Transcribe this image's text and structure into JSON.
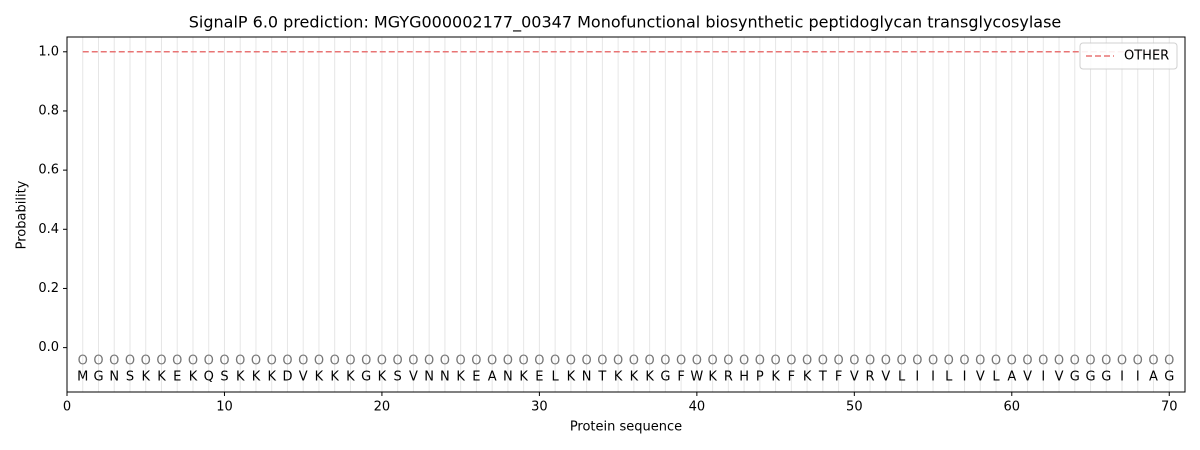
{
  "chart_data": {
    "type": "line",
    "title": "SignalP 6.0 prediction: MGYG000002177_00347 Monofunctional biosynthetic peptidoglycan transglycosylase",
    "xlabel": "Protein sequence",
    "ylabel": "Probability",
    "x": [
      1,
      2,
      3,
      4,
      5,
      6,
      7,
      8,
      9,
      10,
      11,
      12,
      13,
      14,
      15,
      16,
      17,
      18,
      19,
      20,
      21,
      22,
      23,
      24,
      25,
      26,
      27,
      28,
      29,
      30,
      31,
      32,
      33,
      34,
      35,
      36,
      37,
      38,
      39,
      40,
      41,
      42,
      43,
      44,
      45,
      46,
      47,
      48,
      49,
      50,
      51,
      52,
      53,
      54,
      55,
      56,
      57,
      58,
      59,
      60,
      61,
      62,
      63,
      64,
      65,
      66,
      67,
      68,
      69,
      70
    ],
    "residues": [
      "M",
      "G",
      "N",
      "S",
      "K",
      "K",
      "E",
      "K",
      "Q",
      "S",
      "K",
      "K",
      "K",
      "D",
      "V",
      "K",
      "K",
      "K",
      "G",
      "K",
      "S",
      "V",
      "N",
      "N",
      "K",
      "E",
      "A",
      "N",
      "K",
      "E",
      "L",
      "K",
      "N",
      "T",
      "K",
      "K",
      "K",
      "G",
      "F",
      "W",
      "K",
      "R",
      "H",
      "P",
      "K",
      "F",
      "K",
      "T",
      "F",
      "V",
      "R",
      "V",
      "L",
      "I",
      "I",
      "L",
      "I",
      "V",
      "L",
      "A",
      "V",
      "I",
      "V",
      "G",
      "G",
      "G",
      "I",
      "I",
      "A",
      "G"
    ],
    "labels": [
      "O",
      "O",
      "O",
      "O",
      "O",
      "O",
      "O",
      "O",
      "O",
      "O",
      "O",
      "O",
      "O",
      "O",
      "O",
      "O",
      "O",
      "O",
      "O",
      "O",
      "O",
      "O",
      "O",
      "O",
      "O",
      "O",
      "O",
      "O",
      "O",
      "O",
      "O",
      "O",
      "O",
      "O",
      "O",
      "O",
      "O",
      "O",
      "O",
      "O",
      "O",
      "O",
      "O",
      "O",
      "O",
      "O",
      "O",
      "O",
      "O",
      "O",
      "O",
      "O",
      "O",
      "O",
      "O",
      "O",
      "O",
      "O",
      "O",
      "O",
      "O",
      "O",
      "O",
      "O",
      "O",
      "O",
      "O",
      "O",
      "O",
      "O"
    ],
    "series": [
      {
        "name": "OTHER",
        "color": "#e87474",
        "dash": true,
        "values": [
          1,
          1,
          1,
          1,
          1,
          1,
          1,
          1,
          1,
          1,
          1,
          1,
          1,
          1,
          1,
          1,
          1,
          1,
          1,
          1,
          1,
          1,
          1,
          1,
          1,
          1,
          1,
          1,
          1,
          1,
          1,
          1,
          1,
          1,
          1,
          1,
          1,
          1,
          1,
          1,
          1,
          1,
          1,
          1,
          1,
          1,
          1,
          1,
          1,
          1,
          1,
          1,
          1,
          1,
          1,
          1,
          1,
          1,
          1,
          1,
          1,
          1,
          1,
          1,
          1,
          1,
          1,
          1,
          1,
          1
        ]
      }
    ],
    "xlim": [
      0,
      71
    ],
    "ylim": [
      -0.15,
      1.05
    ],
    "xticks": [
      0,
      10,
      20,
      30,
      40,
      50,
      60,
      70
    ],
    "yticks": [
      {
        "value": 0,
        "label": "0.0"
      },
      {
        "value": 0.2,
        "label": "0.2"
      },
      {
        "value": 0.4,
        "label": "0.4"
      },
      {
        "value": 0.6,
        "label": "0.6"
      },
      {
        "value": 0.8,
        "label": "0.8"
      },
      {
        "value": 1,
        "label": "1.0"
      }
    ],
    "legend": "upper right"
  }
}
